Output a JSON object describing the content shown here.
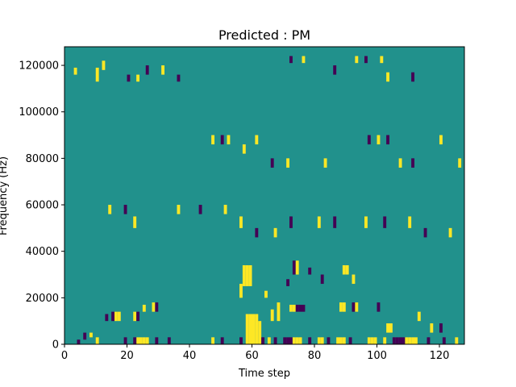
{
  "chart_data": {
    "type": "heatmap",
    "title": "Predicted : PM",
    "xlabel": "Time step",
    "ylabel": "Frequency (Hz)",
    "xlim": [
      0,
      128
    ],
    "ylim": [
      0,
      128000
    ],
    "x_ticks": [
      0,
      20,
      40,
      60,
      80,
      100,
      120
    ],
    "y_ticks": [
      0,
      20000,
      40000,
      60000,
      80000,
      100000,
      120000
    ],
    "n_time": 128,
    "n_freq": 128,
    "colors": {
      "background": "#21918c",
      "high": "#fde725",
      "low": "#440154"
    },
    "cells": [
      {
        "t": 10,
        "f0": 0,
        "f1": 3,
        "v": 1
      },
      {
        "t": 23,
        "f0": 0,
        "f1": 3,
        "v": 1
      },
      {
        "t": 24,
        "f0": 0,
        "f1": 3,
        "v": 1
      },
      {
        "t": 25,
        "f0": 0,
        "f1": 3,
        "v": 1
      },
      {
        "t": 26,
        "f0": 0,
        "f1": 3,
        "v": 1
      },
      {
        "t": 19,
        "f0": 0,
        "f1": 3,
        "v": -1
      },
      {
        "t": 22,
        "f0": 0,
        "f1": 3,
        "v": -1
      },
      {
        "t": 29,
        "f0": 0,
        "f1": 3,
        "v": -1
      },
      {
        "t": 33,
        "f0": 0,
        "f1": 3,
        "v": -1
      },
      {
        "t": 47,
        "f0": 0,
        "f1": 3,
        "v": 1
      },
      {
        "t": 50,
        "f0": 0,
        "f1": 3,
        "v": -1
      },
      {
        "t": 56,
        "f0": 0,
        "f1": 3,
        "v": -1
      },
      {
        "t": 58,
        "f0": 0,
        "f1": 13,
        "v": 1
      },
      {
        "t": 59,
        "f0": 0,
        "f1": 13,
        "v": 1
      },
      {
        "t": 60,
        "f0": 0,
        "f1": 13,
        "v": 1
      },
      {
        "t": 61,
        "f0": 0,
        "f1": 13,
        "v": 1
      },
      {
        "t": 62,
        "f0": 0,
        "f1": 10,
        "v": 1
      },
      {
        "t": 63,
        "f0": 0,
        "f1": 3,
        "v": -1
      },
      {
        "t": 65,
        "f0": 0,
        "f1": 3,
        "v": 1
      },
      {
        "t": 67,
        "f0": 0,
        "f1": 3,
        "v": -1
      },
      {
        "t": 70,
        "f0": 0,
        "f1": 3,
        "v": -1
      },
      {
        "t": 71,
        "f0": 0,
        "f1": 3,
        "v": -1
      },
      {
        "t": 72,
        "f0": 0,
        "f1": 3,
        "v": -1
      },
      {
        "t": 73,
        "f0": 0,
        "f1": 3,
        "v": 1
      },
      {
        "t": 74,
        "f0": 0,
        "f1": 3,
        "v": 1
      },
      {
        "t": 75,
        "f0": 0,
        "f1": 3,
        "v": 1
      },
      {
        "t": 78,
        "f0": 0,
        "f1": 3,
        "v": -1
      },
      {
        "t": 81,
        "f0": 0,
        "f1": 3,
        "v": 1
      },
      {
        "t": 82,
        "f0": 0,
        "f1": 3,
        "v": 1
      },
      {
        "t": 84,
        "f0": 0,
        "f1": 3,
        "v": -1
      },
      {
        "t": 87,
        "f0": 0,
        "f1": 3,
        "v": 1
      },
      {
        "t": 88,
        "f0": 0,
        "f1": 3,
        "v": 1
      },
      {
        "t": 89,
        "f0": 0,
        "f1": 3,
        "v": 1
      },
      {
        "t": 91,
        "f0": 0,
        "f1": 3,
        "v": -1
      },
      {
        "t": 97,
        "f0": 0,
        "f1": 3,
        "v": 1
      },
      {
        "t": 98,
        "f0": 0,
        "f1": 3,
        "v": 1
      },
      {
        "t": 99,
        "f0": 0,
        "f1": 3,
        "v": 1
      },
      {
        "t": 102,
        "f0": 0,
        "f1": 3,
        "v": 1
      },
      {
        "t": 105,
        "f0": 0,
        "f1": 3,
        "v": -1
      },
      {
        "t": 106,
        "f0": 0,
        "f1": 3,
        "v": -1
      },
      {
        "t": 107,
        "f0": 0,
        "f1": 3,
        "v": -1
      },
      {
        "t": 108,
        "f0": 0,
        "f1": 3,
        "v": -1
      },
      {
        "t": 109,
        "f0": 0,
        "f1": 3,
        "v": 1
      },
      {
        "t": 110,
        "f0": 0,
        "f1": 3,
        "v": 1
      },
      {
        "t": 111,
        "f0": 0,
        "f1": 3,
        "v": 1
      },
      {
        "t": 112,
        "f0": 0,
        "f1": 3,
        "v": 1
      },
      {
        "t": 116,
        "f0": 0,
        "f1": 3,
        "v": -1
      },
      {
        "t": 121,
        "f0": 0,
        "f1": 3,
        "v": -1
      },
      {
        "t": 125,
        "f0": 0,
        "f1": 3,
        "v": 1
      },
      {
        "t": 4,
        "f0": 0,
        "f1": 2,
        "v": -1
      },
      {
        "t": 6,
        "f0": 2,
        "f1": 5,
        "v": -1
      },
      {
        "t": 8,
        "f0": 3,
        "f1": 5,
        "v": 1
      },
      {
        "t": 13,
        "f0": 10,
        "f1": 13,
        "v": -1
      },
      {
        "t": 15,
        "f0": 10,
        "f1": 14,
        "v": -1
      },
      {
        "t": 16,
        "f0": 10,
        "f1": 14,
        "v": 1
      },
      {
        "t": 17,
        "f0": 10,
        "f1": 14,
        "v": 1
      },
      {
        "t": 22,
        "f0": 10,
        "f1": 14,
        "v": 1
      },
      {
        "t": 23,
        "f0": 10,
        "f1": 14,
        "v": -1
      },
      {
        "t": 25,
        "f0": 14,
        "f1": 17,
        "v": 1
      },
      {
        "t": 28,
        "f0": 14,
        "f1": 18,
        "v": 1
      },
      {
        "t": 29,
        "f0": 14,
        "f1": 18,
        "v": -1
      },
      {
        "t": 56,
        "f0": 20,
        "f1": 26,
        "v": 1
      },
      {
        "t": 57,
        "f0": 25,
        "f1": 34,
        "v": 1
      },
      {
        "t": 58,
        "f0": 25,
        "f1": 34,
        "v": 1
      },
      {
        "t": 59,
        "f0": 25,
        "f1": 34,
        "v": 1
      },
      {
        "t": 64,
        "f0": 20,
        "f1": 23,
        "v": 1
      },
      {
        "t": 66,
        "f0": 10,
        "f1": 15,
        "v": 1
      },
      {
        "t": 68,
        "f0": 10,
        "f1": 18,
        "v": 1
      },
      {
        "t": 72,
        "f0": 14,
        "f1": 17,
        "v": 1
      },
      {
        "t": 73,
        "f0": 14,
        "f1": 17,
        "v": 1
      },
      {
        "t": 74,
        "f0": 14,
        "f1": 17,
        "v": -1
      },
      {
        "t": 75,
        "f0": 14,
        "f1": 17,
        "v": -1
      },
      {
        "t": 76,
        "f0": 14,
        "f1": 17,
        "v": -1
      },
      {
        "t": 71,
        "f0": 25,
        "f1": 28,
        "v": -1
      },
      {
        "t": 73,
        "f0": 30,
        "f1": 36,
        "v": -1
      },
      {
        "t": 74,
        "f0": 30,
        "f1": 36,
        "v": 1
      },
      {
        "t": 78,
        "f0": 30,
        "f1": 33,
        "v": -1
      },
      {
        "t": 82,
        "f0": 26,
        "f1": 30,
        "v": -1
      },
      {
        "t": 89,
        "f0": 30,
        "f1": 34,
        "v": 1
      },
      {
        "t": 90,
        "f0": 30,
        "f1": 34,
        "v": 1
      },
      {
        "t": 92,
        "f0": 26,
        "f1": 30,
        "v": 1
      },
      {
        "t": 88,
        "f0": 14,
        "f1": 18,
        "v": 1
      },
      {
        "t": 89,
        "f0": 14,
        "f1": 18,
        "v": 1
      },
      {
        "t": 92,
        "f0": 14,
        "f1": 18,
        "v": -1
      },
      {
        "t": 93,
        "f0": 14,
        "f1": 18,
        "v": 1
      },
      {
        "t": 100,
        "f0": 14,
        "f1": 18,
        "v": -1
      },
      {
        "t": 103,
        "f0": 5,
        "f1": 9,
        "v": 1
      },
      {
        "t": 104,
        "f0": 5,
        "f1": 9,
        "v": 1
      },
      {
        "t": 113,
        "f0": 10,
        "f1": 14,
        "v": 1
      },
      {
        "t": 117,
        "f0": 5,
        "f1": 9,
        "v": 1
      },
      {
        "t": 120,
        "f0": 5,
        "f1": 9,
        "v": -1
      },
      {
        "t": 3,
        "f0": 116,
        "f1": 119,
        "v": 1
      },
      {
        "t": 10,
        "f0": 113,
        "f1": 119,
        "v": 1
      },
      {
        "t": 12,
        "f0": 118,
        "f1": 122,
        "v": 1
      },
      {
        "t": 20,
        "f0": 113,
        "f1": 116,
        "v": -1
      },
      {
        "t": 23,
        "f0": 113,
        "f1": 116,
        "v": 1
      },
      {
        "t": 26,
        "f0": 116,
        "f1": 120,
        "v": -1
      },
      {
        "t": 31,
        "f0": 116,
        "f1": 120,
        "v": 1
      },
      {
        "t": 36,
        "f0": 113,
        "f1": 116,
        "v": -1
      },
      {
        "t": 72,
        "f0": 121,
        "f1": 124,
        "v": -1
      },
      {
        "t": 76,
        "f0": 121,
        "f1": 124,
        "v": 1
      },
      {
        "t": 86,
        "f0": 116,
        "f1": 120,
        "v": -1
      },
      {
        "t": 93,
        "f0": 121,
        "f1": 124,
        "v": 1
      },
      {
        "t": 96,
        "f0": 121,
        "f1": 124,
        "v": -1
      },
      {
        "t": 101,
        "f0": 121,
        "f1": 124,
        "v": 1
      },
      {
        "t": 103,
        "f0": 113,
        "f1": 117,
        "v": 1
      },
      {
        "t": 111,
        "f0": 113,
        "f1": 117,
        "v": -1
      },
      {
        "t": 47,
        "f0": 86,
        "f1": 90,
        "v": 1
      },
      {
        "t": 50,
        "f0": 86,
        "f1": 90,
        "v": -1
      },
      {
        "t": 52,
        "f0": 86,
        "f1": 90,
        "v": 1
      },
      {
        "t": 57,
        "f0": 82,
        "f1": 86,
        "v": 1
      },
      {
        "t": 61,
        "f0": 86,
        "f1": 90,
        "v": 1
      },
      {
        "t": 66,
        "f0": 76,
        "f1": 80,
        "v": -1
      },
      {
        "t": 71,
        "f0": 76,
        "f1": 80,
        "v": 1
      },
      {
        "t": 83,
        "f0": 76,
        "f1": 80,
        "v": 1
      },
      {
        "t": 97,
        "f0": 86,
        "f1": 90,
        "v": -1
      },
      {
        "t": 100,
        "f0": 86,
        "f1": 90,
        "v": 1
      },
      {
        "t": 103,
        "f0": 86,
        "f1": 90,
        "v": -1
      },
      {
        "t": 107,
        "f0": 76,
        "f1": 80,
        "v": 1
      },
      {
        "t": 111,
        "f0": 76,
        "f1": 80,
        "v": -1
      },
      {
        "t": 120,
        "f0": 86,
        "f1": 90,
        "v": 1
      },
      {
        "t": 126,
        "f0": 76,
        "f1": 80,
        "v": 1
      },
      {
        "t": 14,
        "f0": 56,
        "f1": 60,
        "v": 1
      },
      {
        "t": 19,
        "f0": 56,
        "f1": 60,
        "v": -1
      },
      {
        "t": 22,
        "f0": 50,
        "f1": 55,
        "v": 1
      },
      {
        "t": 36,
        "f0": 56,
        "f1": 60,
        "v": 1
      },
      {
        "t": 43,
        "f0": 56,
        "f1": 60,
        "v": -1
      },
      {
        "t": 51,
        "f0": 56,
        "f1": 60,
        "v": 1
      },
      {
        "t": 56,
        "f0": 50,
        "f1": 55,
        "v": 1
      },
      {
        "t": 61,
        "f0": 46,
        "f1": 50,
        "v": -1
      },
      {
        "t": 67,
        "f0": 46,
        "f1": 50,
        "v": 1
      },
      {
        "t": 72,
        "f0": 50,
        "f1": 55,
        "v": -1
      },
      {
        "t": 81,
        "f0": 50,
        "f1": 55,
        "v": 1
      },
      {
        "t": 86,
        "f0": 50,
        "f1": 55,
        "v": -1
      },
      {
        "t": 96,
        "f0": 50,
        "f1": 55,
        "v": 1
      },
      {
        "t": 102,
        "f0": 50,
        "f1": 55,
        "v": -1
      },
      {
        "t": 110,
        "f0": 50,
        "f1": 55,
        "v": 1
      },
      {
        "t": 115,
        "f0": 46,
        "f1": 50,
        "v": -1
      },
      {
        "t": 123,
        "f0": 46,
        "f1": 50,
        "v": 1
      }
    ]
  }
}
